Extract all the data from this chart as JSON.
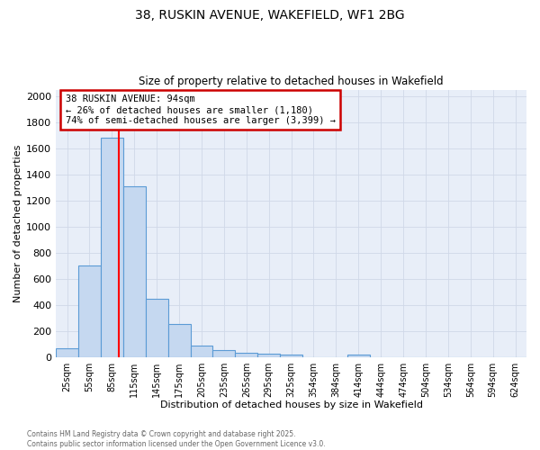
{
  "title_line1": "38, RUSKIN AVENUE, WAKEFIELD, WF1 2BG",
  "title_line2": "Size of property relative to detached houses in Wakefield",
  "xlabel": "Distribution of detached houses by size in Wakefield",
  "ylabel": "Number of detached properties",
  "categories": [
    "25sqm",
    "55sqm",
    "85sqm",
    "115sqm",
    "145sqm",
    "175sqm",
    "205sqm",
    "235sqm",
    "265sqm",
    "295sqm",
    "325sqm",
    "354sqm",
    "384sqm",
    "414sqm",
    "444sqm",
    "474sqm",
    "504sqm",
    "534sqm",
    "564sqm",
    "594sqm",
    "624sqm"
  ],
  "values": [
    65,
    700,
    1680,
    1310,
    445,
    250,
    90,
    55,
    30,
    25,
    15,
    0,
    0,
    20,
    0,
    0,
    0,
    0,
    0,
    0,
    0
  ],
  "bar_color": "#c5d8f0",
  "bar_edge_color": "#5b9bd5",
  "annotation_text": "38 RUSKIN AVENUE: 94sqm\n← 26% of detached houses are smaller (1,180)\n74% of semi-detached houses are larger (3,399) →",
  "annotation_box_color": "#ffffff",
  "annotation_box_edge": "#cc0000",
  "ylim": [
    0,
    2050
  ],
  "yticks": [
    0,
    200,
    400,
    600,
    800,
    1000,
    1200,
    1400,
    1600,
    1800,
    2000
  ],
  "footer_line1": "Contains HM Land Registry data © Crown copyright and database right 2025.",
  "footer_line2": "Contains public sector information licensed under the Open Government Licence v3.0.",
  "grid_color": "#d0d8e8",
  "background_color": "#e8eef8"
}
